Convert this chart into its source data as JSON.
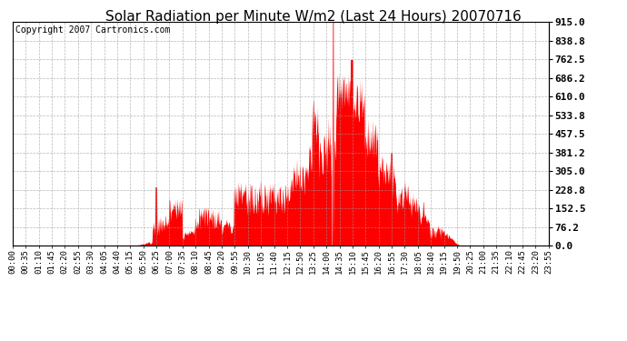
{
  "title": "Solar Radiation per Minute W/m2 (Last 24 Hours) 20070716",
  "copyright": "Copyright 2007 Cartronics.com",
  "background_color": "#ffffff",
  "plot_bg_color": "#ffffff",
  "bar_color": "#ff0000",
  "grid_color": "#999999",
  "ylim": [
    0,
    915.0
  ],
  "yticks": [
    0.0,
    76.2,
    152.5,
    228.8,
    305.0,
    381.2,
    457.5,
    533.8,
    610.0,
    686.2,
    762.5,
    838.8,
    915.0
  ],
  "xlabel_fontsize": 6.5,
  "ylabel_fontsize": 8,
  "title_fontsize": 11,
  "copyright_fontsize": 7,
  "xtick_labels": [
    "00:00",
    "00:35",
    "01:10",
    "01:45",
    "02:20",
    "02:55",
    "03:30",
    "04:05",
    "04:40",
    "05:15",
    "05:50",
    "06:25",
    "07:00",
    "07:35",
    "08:10",
    "08:45",
    "09:20",
    "09:55",
    "10:30",
    "11:05",
    "11:40",
    "12:15",
    "12:50",
    "13:25",
    "14:00",
    "14:35",
    "15:10",
    "15:45",
    "16:20",
    "16:55",
    "17:30",
    "18:05",
    "18:40",
    "19:15",
    "19:50",
    "20:25",
    "21:00",
    "21:35",
    "22:10",
    "22:45",
    "23:20",
    "23:55"
  ],
  "num_points": 1440,
  "zero_line_color": "#ff0000"
}
